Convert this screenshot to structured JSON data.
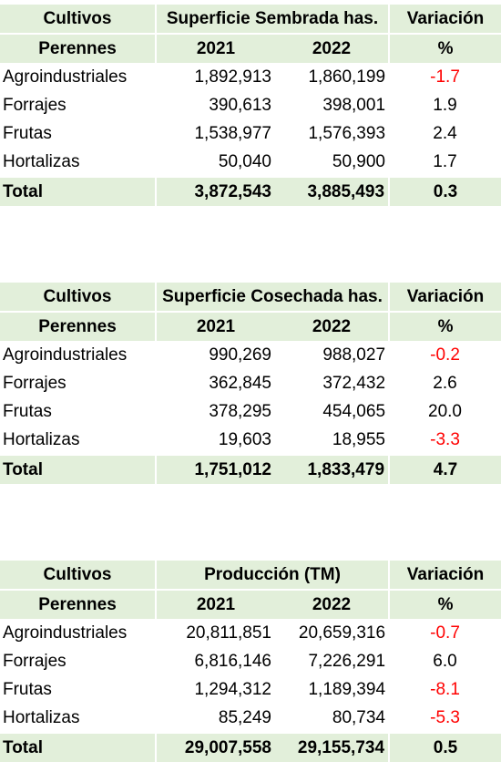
{
  "tables": [
    {
      "header_col1_top": "Cultivos",
      "header_col1_bottom": "Perennes",
      "header_group": "Superficie Sembrada has.",
      "year1": "2021",
      "year2": "2022",
      "header_var_top": "Variación",
      "header_var_bottom": "%",
      "rows": [
        {
          "name": "Agroindustriales",
          "v2021": "1,892,913",
          "v2022": "1,860,199",
          "var": "-1.7"
        },
        {
          "name": "Forrajes",
          "v2021": "390,613",
          "v2022": "398,001",
          "var": "1.9"
        },
        {
          "name": "Frutas",
          "v2021": "1,538,977",
          "v2022": "1,576,393",
          "var": "2.4"
        },
        {
          "name": "Hortalizas",
          "v2021": "50,040",
          "v2022": "50,900",
          "var": "1.7"
        }
      ],
      "total": {
        "name": "Total",
        "v2021": "3,872,543",
        "v2022": "3,885,493",
        "var": "0.3"
      }
    },
    {
      "header_col1_top": "Cultivos",
      "header_col1_bottom": "Perennes",
      "header_group": "Superficie Cosechada has.",
      "year1": "2021",
      "year2": "2022",
      "header_var_top": "Variación",
      "header_var_bottom": "%",
      "rows": [
        {
          "name": "Agroindustriales",
          "v2021": "990,269",
          "v2022": "988,027",
          "var": "-0.2"
        },
        {
          "name": "Forrajes",
          "v2021": "362,845",
          "v2022": "372,432",
          "var": "2.6"
        },
        {
          "name": "Frutas",
          "v2021": "378,295",
          "v2022": "454,065",
          "var": "20.0"
        },
        {
          "name": "Hortalizas",
          "v2021": "19,603",
          "v2022": "18,955",
          "var": "-3.3"
        }
      ],
      "total": {
        "name": "Total",
        "v2021": "1,751,012",
        "v2022": "1,833,479",
        "var": "4.7"
      }
    },
    {
      "header_col1_top": "Cultivos",
      "header_col1_bottom": "Perennes",
      "header_group": "Producción (TM)",
      "year1": "2021",
      "year2": "2022",
      "header_var_top": "Variación",
      "header_var_bottom": "%",
      "rows": [
        {
          "name": "Agroindustriales",
          "v2021": "20,811,851",
          "v2022": "20,659,316",
          "var": "-0.7"
        },
        {
          "name": "Forrajes",
          "v2021": "6,816,146",
          "v2022": "7,226,291",
          "var": "6.0"
        },
        {
          "name": "Frutas",
          "v2021": "1,294,312",
          "v2022": "1,189,394",
          "var": "-8.1"
        },
        {
          "name": "Hortalizas",
          "v2021": "85,249",
          "v2022": "80,734",
          "var": "-5.3"
        }
      ],
      "total": {
        "name": "Total",
        "v2021": "29,007,558",
        "v2022": "29,155,734",
        "var": "0.5"
      }
    }
  ],
  "colors": {
    "header_bg": "#e2efda",
    "negative": "#ff0000",
    "text": "#000000"
  }
}
